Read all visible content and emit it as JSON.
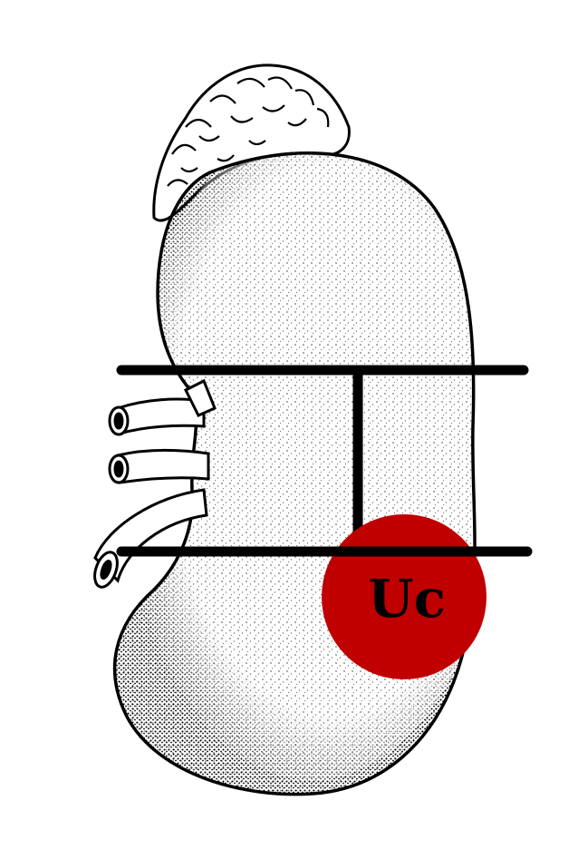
{
  "figure": {
    "subject": "kidney-illustration",
    "tumor_label": "Uc",
    "colors": {
      "background": "#ffffff",
      "ink": "#000000",
      "tumor_fill": "#c00000"
    }
  }
}
